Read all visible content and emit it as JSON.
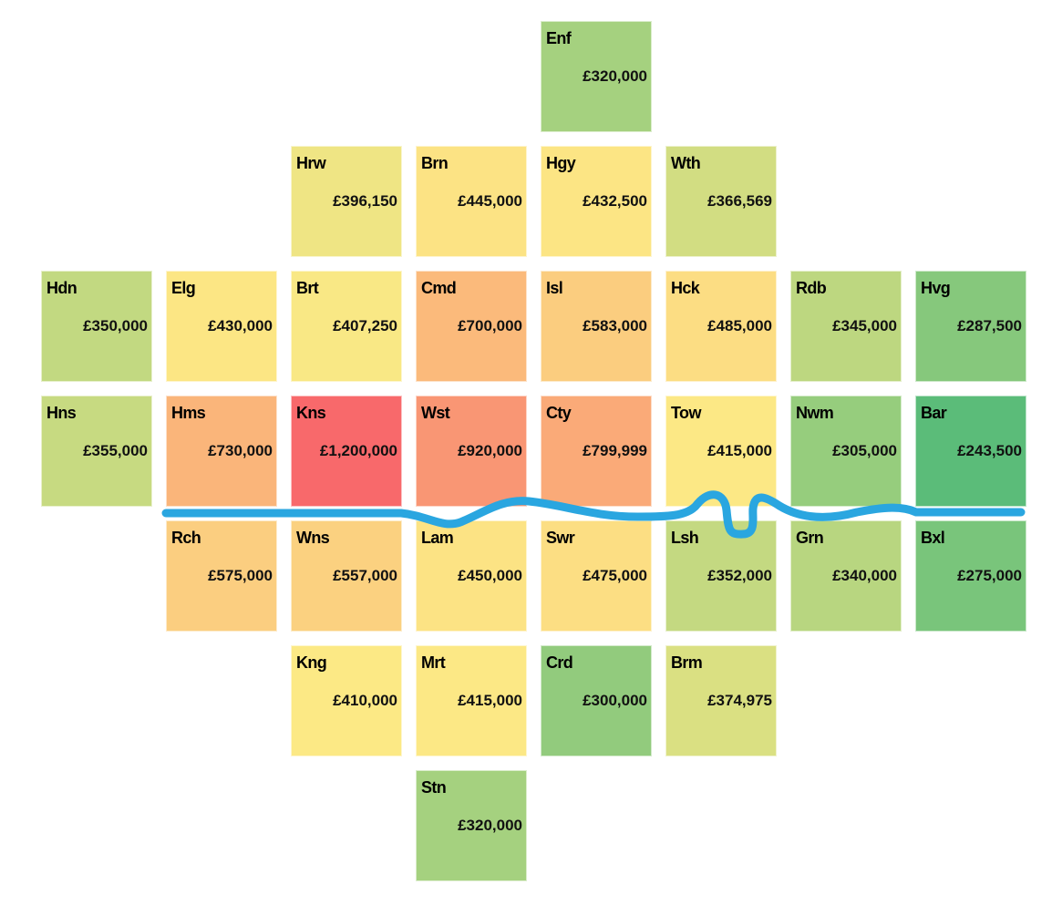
{
  "chart_data": {
    "type": "heatmap",
    "title": "",
    "color_scale": {
      "low": "#5BBC79",
      "mid": "#FCE985",
      "high": "#F8696B"
    },
    "river_color": "#2AA6E0",
    "tiles": [
      {
        "code": "Enf",
        "price": 320000,
        "label": "£320,000",
        "row": 0,
        "col": 4
      },
      {
        "code": "Hrw",
        "price": 396150,
        "label": "£396,150",
        "row": 1,
        "col": 2
      },
      {
        "code": "Brn",
        "price": 445000,
        "label": "£445,000",
        "row": 1,
        "col": 3
      },
      {
        "code": "Hgy",
        "price": 432500,
        "label": "£432,500",
        "row": 1,
        "col": 4
      },
      {
        "code": "Wth",
        "price": 366569,
        "label": "£366,569",
        "row": 1,
        "col": 5
      },
      {
        "code": "Hdn",
        "price": 350000,
        "label": "£350,000",
        "row": 2,
        "col": 0
      },
      {
        "code": "Elg",
        "price": 430000,
        "label": "£430,000",
        "row": 2,
        "col": 1
      },
      {
        "code": "Brt",
        "price": 407250,
        "label": "£407,250",
        "row": 2,
        "col": 2
      },
      {
        "code": "Cmd",
        "price": 700000,
        "label": "£700,000",
        "row": 2,
        "col": 3
      },
      {
        "code": "Isl",
        "price": 583000,
        "label": "£583,000",
        "row": 2,
        "col": 4
      },
      {
        "code": "Hck",
        "price": 485000,
        "label": "£485,000",
        "row": 2,
        "col": 5
      },
      {
        "code": "Rdb",
        "price": 345000,
        "label": "£345,000",
        "row": 2,
        "col": 6
      },
      {
        "code": "Hvg",
        "price": 287500,
        "label": "£287,500",
        "row": 2,
        "col": 7
      },
      {
        "code": "Hns",
        "price": 355000,
        "label": "£355,000",
        "row": 3,
        "col": 0
      },
      {
        "code": "Hms",
        "price": 730000,
        "label": "£730,000",
        "row": 3,
        "col": 1
      },
      {
        "code": "Kns",
        "price": 1200000,
        "label": "£1,200,000",
        "row": 3,
        "col": 2
      },
      {
        "code": "Wst",
        "price": 920000,
        "label": "£920,000",
        "row": 3,
        "col": 3
      },
      {
        "code": "Cty",
        "price": 799999,
        "label": "£799,999",
        "row": 3,
        "col": 4
      },
      {
        "code": "Tow",
        "price": 415000,
        "label": "£415,000",
        "row": 3,
        "col": 5
      },
      {
        "code": "Nwm",
        "price": 305000,
        "label": "£305,000",
        "row": 3,
        "col": 6
      },
      {
        "code": "Bar",
        "price": 243500,
        "label": "£243,500",
        "row": 3,
        "col": 7
      },
      {
        "code": "Rch",
        "price": 575000,
        "label": "£575,000",
        "row": 4,
        "col": 1
      },
      {
        "code": "Wns",
        "price": 557000,
        "label": "£557,000",
        "row": 4,
        "col": 2
      },
      {
        "code": "Lam",
        "price": 450000,
        "label": "£450,000",
        "row": 4,
        "col": 3
      },
      {
        "code": "Swr",
        "price": 475000,
        "label": "£475,000",
        "row": 4,
        "col": 4
      },
      {
        "code": "Lsh",
        "price": 352000,
        "label": "£352,000",
        "row": 4,
        "col": 5
      },
      {
        "code": "Grn",
        "price": 340000,
        "label": "£340,000",
        "row": 4,
        "col": 6
      },
      {
        "code": "Bxl",
        "price": 275000,
        "label": "£275,000",
        "row": 4,
        "col": 7
      },
      {
        "code": "Kng",
        "price": 410000,
        "label": "£410,000",
        "row": 5,
        "col": 2
      },
      {
        "code": "Mrt",
        "price": 415000,
        "label": "£415,000",
        "row": 5,
        "col": 3
      },
      {
        "code": "Crd",
        "price": 300000,
        "label": "£300,000",
        "row": 5,
        "col": 4
      },
      {
        "code": "Brm",
        "price": 374975,
        "label": "£374,975",
        "row": 5,
        "col": 5
      },
      {
        "code": "Stn",
        "price": 320000,
        "label": "£320,000",
        "row": 6,
        "col": 3
      }
    ]
  }
}
